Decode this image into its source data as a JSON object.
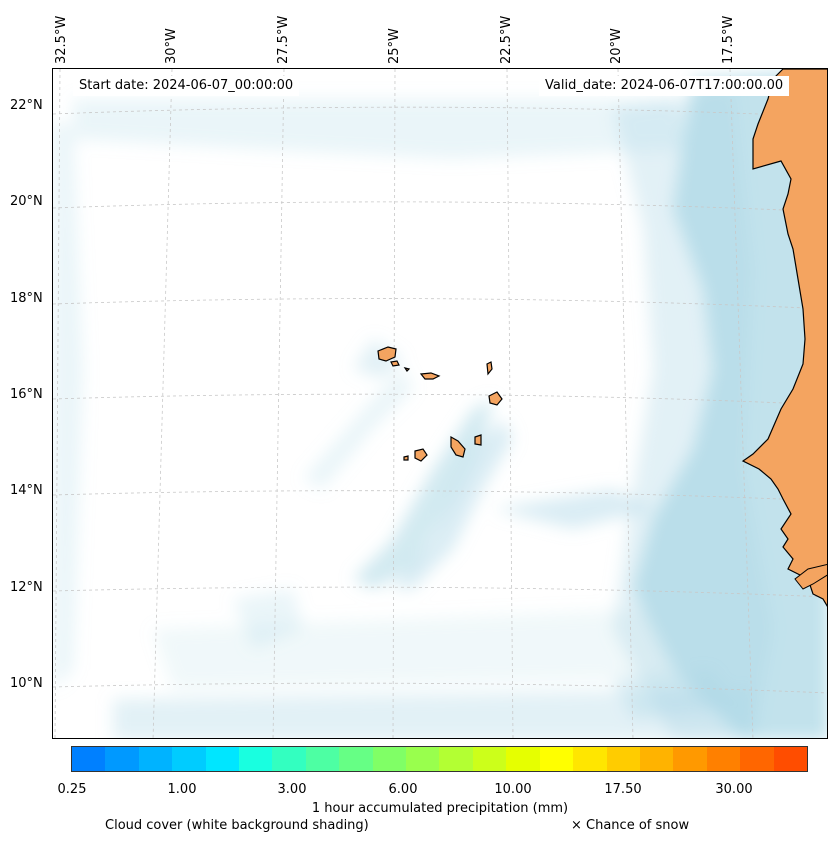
{
  "header": {
    "start_date": "Start date: 2024-06-07_00:00:00",
    "valid_date": "Valid_date: 2024-06-07T17:00:00.00"
  },
  "map": {
    "lon_labels": [
      "32.5°W",
      "30°W",
      "27.5°W",
      "25°W",
      "22.5°W",
      "20°W",
      "17.5°W"
    ],
    "lat_labels": [
      "22°N",
      "20°N",
      "18°N",
      "16°N",
      "14°N",
      "12°N",
      "10°N"
    ],
    "land_color": "#f4a460",
    "cloud_color": "#add8e6",
    "gridline_color": "#c8c8c8"
  },
  "colorbar": {
    "label": "1 hour accumulated precipitation (mm)",
    "tick_labels": [
      "0.25",
      "1.00",
      "3.00",
      "6.00",
      "10.00",
      "17.50",
      "30.00"
    ],
    "colors": [
      "#0080ff",
      "#0099ff",
      "#00b3ff",
      "#00ccff",
      "#00e6ff",
      "#19ffe0",
      "#33ffc0",
      "#4dffa3",
      "#66ff85",
      "#80ff66",
      "#99ff4d",
      "#b3ff33",
      "#ccff1a",
      "#e6ff00",
      "#ffff00",
      "#ffe600",
      "#ffcc00",
      "#ffb300",
      "#ff9900",
      "#ff8000",
      "#ff6600",
      "#ff4d00"
    ]
  },
  "legend": {
    "cloud_cover": "Cloud cover (white background shading)",
    "snow": "× Chance of snow"
  }
}
